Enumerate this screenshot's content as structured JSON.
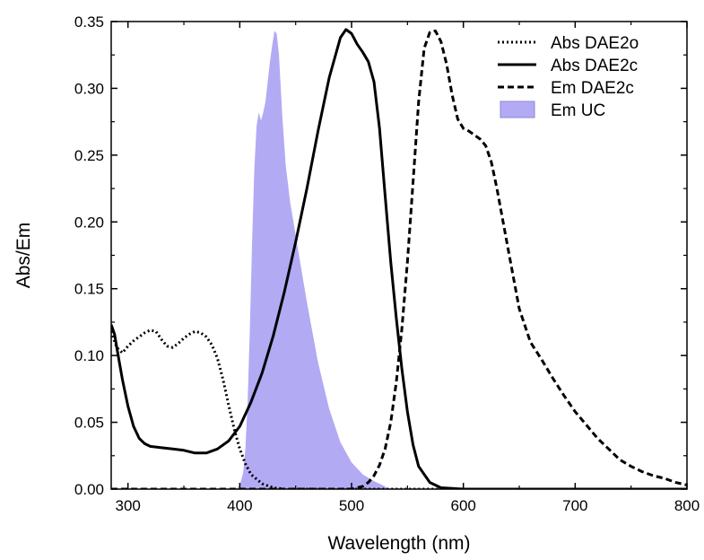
{
  "chart_data": {
    "type": "line",
    "xlabel": "Wavelength (nm)",
    "ylabel": "Abs/Em",
    "xlim": [
      285,
      800
    ],
    "ylim": [
      0,
      0.35
    ],
    "x_ticks": [
      "300",
      "400",
      "500",
      "600",
      "700",
      "800"
    ],
    "x_tick_values": [
      300,
      400,
      500,
      600,
      700,
      800
    ],
    "y_ticks": [
      "0.00",
      "0.05",
      "0.10",
      "0.15",
      "0.20",
      "0.25",
      "0.30",
      "0.35"
    ],
    "y_tick_values": [
      0,
      0.05,
      0.1,
      0.15,
      0.2,
      0.25,
      0.3,
      0.35
    ],
    "grid": false,
    "legend_position": "top-right",
    "fill_color": "#b3aaf4",
    "series": [
      {
        "name": "Abs DAE2o",
        "style": "dotted",
        "color": "#000000",
        "x": [
          285,
          290,
          295,
          300,
          305,
          310,
          315,
          320,
          325,
          330,
          335,
          340,
          345,
          350,
          355,
          360,
          365,
          370,
          375,
          380,
          385,
          390,
          395,
          400,
          405,
          410,
          420,
          430,
          440,
          460,
          500,
          800
        ],
        "y": [
          0.118,
          0.106,
          0.102,
          0.107,
          0.111,
          0.114,
          0.117,
          0.119,
          0.118,
          0.112,
          0.107,
          0.106,
          0.109,
          0.113,
          0.116,
          0.118,
          0.117,
          0.114,
          0.108,
          0.098,
          0.082,
          0.063,
          0.045,
          0.03,
          0.019,
          0.011,
          0.004,
          0.001,
          0,
          0,
          0,
          0
        ]
      },
      {
        "name": "Abs DAE2c",
        "style": "solid",
        "color": "#000000",
        "x": [
          285,
          288,
          291,
          295,
          300,
          305,
          310,
          315,
          320,
          330,
          340,
          350,
          360,
          370,
          380,
          390,
          400,
          410,
          420,
          430,
          440,
          450,
          460,
          470,
          480,
          490,
          495,
          500,
          505,
          510,
          515,
          520,
          525,
          530,
          535,
          540,
          545,
          550,
          555,
          560,
          570,
          580,
          600,
          800
        ],
        "y": [
          0.123,
          0.116,
          0.101,
          0.082,
          0.062,
          0.047,
          0.038,
          0.034,
          0.032,
          0.031,
          0.03,
          0.029,
          0.027,
          0.027,
          0.03,
          0.036,
          0.047,
          0.065,
          0.087,
          0.115,
          0.148,
          0.185,
          0.225,
          0.268,
          0.308,
          0.338,
          0.344,
          0.341,
          0.333,
          0.327,
          0.32,
          0.305,
          0.27,
          0.22,
          0.17,
          0.128,
          0.09,
          0.058,
          0.033,
          0.017,
          0.005,
          0.001,
          0,
          0
        ]
      },
      {
        "name": "Em DAE2c",
        "style": "dashed",
        "color": "#000000",
        "x": [
          285,
          500,
          510,
          515,
          520,
          525,
          530,
          535,
          540,
          545,
          550,
          555,
          560,
          565,
          570,
          575,
          580,
          585,
          590,
          595,
          600,
          605,
          610,
          615,
          620,
          625,
          630,
          640,
          650,
          660,
          670,
          680,
          690,
          700,
          710,
          720,
          730,
          740,
          750,
          760,
          770,
          780,
          790,
          800
        ],
        "y": [
          0,
          0,
          0.002,
          0.005,
          0.01,
          0.018,
          0.03,
          0.05,
          0.08,
          0.12,
          0.17,
          0.23,
          0.29,
          0.33,
          0.342,
          0.343,
          0.335,
          0.318,
          0.295,
          0.277,
          0.27,
          0.268,
          0.265,
          0.262,
          0.257,
          0.245,
          0.225,
          0.18,
          0.135,
          0.11,
          0.097,
          0.083,
          0.07,
          0.058,
          0.048,
          0.038,
          0.03,
          0.022,
          0.017,
          0.013,
          0.01,
          0.008,
          0.005,
          0.003
        ]
      },
      {
        "name": "Em UC",
        "style": "fill",
        "color": "#b3aaf4",
        "x": [
          397,
          400,
          403,
          405,
          407,
          409,
          411,
          413,
          415,
          417,
          419,
          421,
          423,
          425,
          427,
          429,
          431,
          433,
          435,
          438,
          441,
          445,
          450,
          455,
          460,
          470,
          480,
          490,
          500,
          510,
          520,
          525,
          530,
          533
        ],
        "y": [
          0,
          0.003,
          0.012,
          0.03,
          0.065,
          0.12,
          0.185,
          0.24,
          0.272,
          0.282,
          0.276,
          0.282,
          0.29,
          0.305,
          0.32,
          0.332,
          0.343,
          0.341,
          0.326,
          0.28,
          0.243,
          0.215,
          0.19,
          0.165,
          0.14,
          0.095,
          0.06,
          0.035,
          0.02,
          0.011,
          0.006,
          0.004,
          0.002,
          0
        ]
      }
    ]
  }
}
